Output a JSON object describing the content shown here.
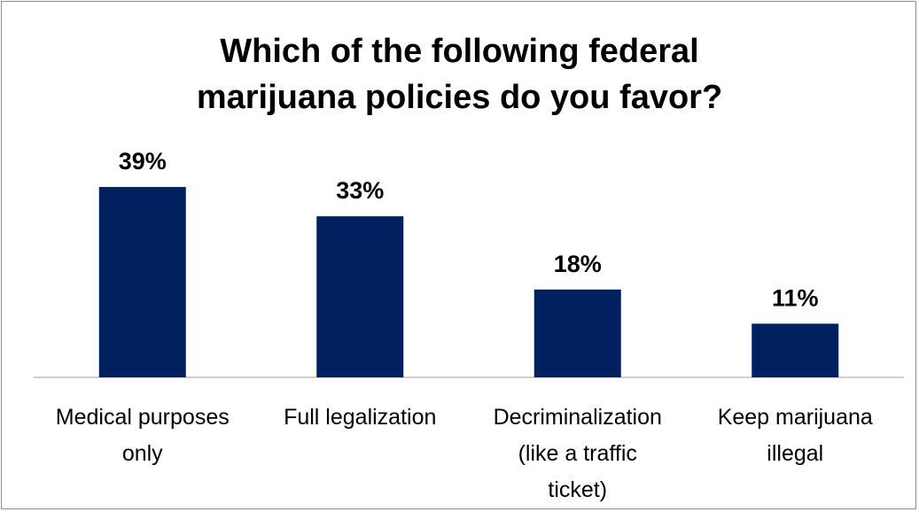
{
  "chart_data": {
    "type": "bar",
    "title_lines": [
      "Which of the following federal",
      "marijuana policies do you favor?"
    ],
    "categories": [
      [
        "Medical purposes",
        "only"
      ],
      [
        "Full legalization"
      ],
      [
        "Decriminalization",
        "(like a traffic",
        "ticket)"
      ],
      [
        "Keep marijuana",
        "illegal"
      ]
    ],
    "values": [
      39,
      33,
      18,
      11
    ],
    "labels": [
      "39%",
      "33%",
      "18%",
      "11%"
    ],
    "bar_color": "#002060",
    "ylim": [
      0,
      45
    ],
    "grid": false
  }
}
